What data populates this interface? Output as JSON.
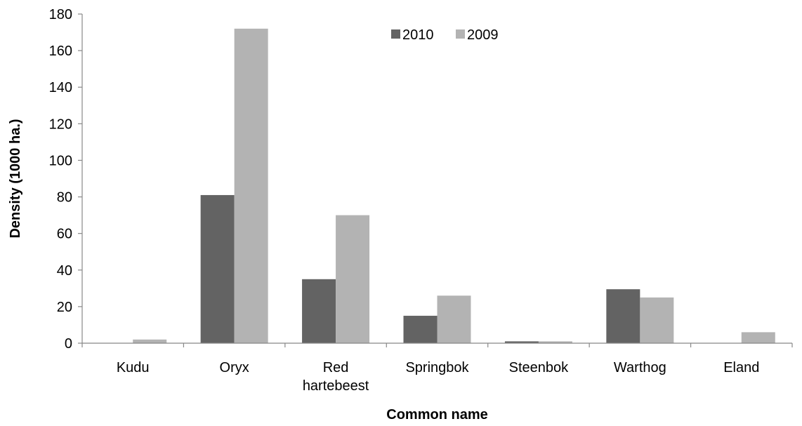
{
  "chart_data": {
    "type": "bar",
    "title": "",
    "xlabel": "Common name",
    "ylabel": "Density (1000 ha.)",
    "categories": [
      [
        "Kudu"
      ],
      [
        "Oryx"
      ],
      [
        "Red",
        "hartebeest"
      ],
      [
        "Springbok"
      ],
      [
        "Steenbok"
      ],
      [
        "Warthog"
      ],
      [
        "Eland"
      ]
    ],
    "series": [
      {
        "name": "2010",
        "color": "#636363",
        "values": [
          0,
          81,
          35,
          15,
          1,
          29.5,
          0
        ]
      },
      {
        "name": "2009",
        "color": "#b3b3b3",
        "values": [
          2,
          172,
          70,
          26,
          1,
          25,
          6
        ]
      }
    ],
    "ylim": [
      0,
      180
    ],
    "yticks": [
      0,
      20,
      40,
      60,
      80,
      100,
      120,
      140,
      160,
      180
    ],
    "grid": false,
    "legend_position": "top-center"
  }
}
